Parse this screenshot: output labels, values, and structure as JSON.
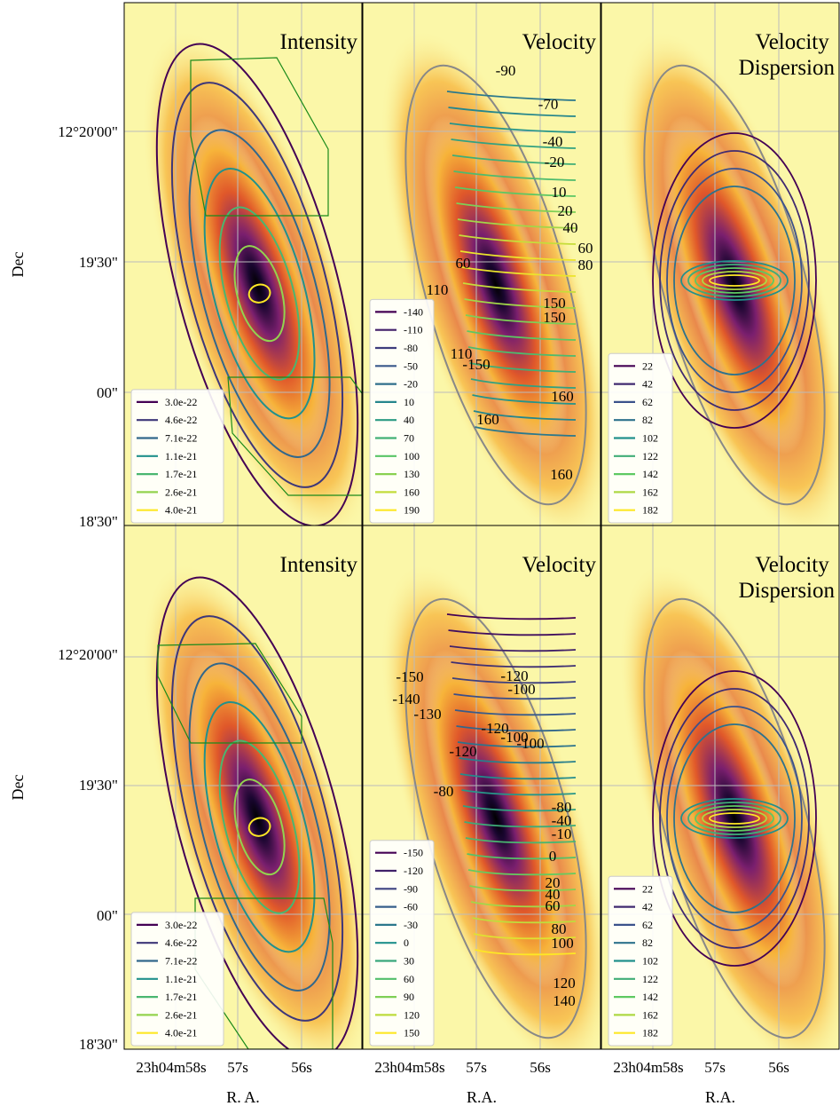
{
  "panels": [
    {
      "title": "Intensity",
      "legend": [
        "3.0e-22",
        "4.6e-22",
        "7.1e-22",
        "1.1e-21",
        "1.7e-21",
        "2.6e-21",
        "4.0e-21"
      ]
    },
    {
      "title": "Velocity",
      "legend": [
        "-140",
        "-110",
        "-80",
        "-50",
        "-20",
        "10",
        "40",
        "70",
        "100",
        "130",
        "160",
        "190"
      ],
      "contour_labels": [
        "-90",
        "-70",
        "-40",
        "-20",
        "10",
        "20",
        "40",
        "60",
        "80",
        "60",
        "110",
        "150",
        "150",
        "110",
        "-150",
        "160",
        "160",
        "160"
      ]
    },
    {
      "title": "Velocity Dispersion",
      "legend": [
        "22",
        "42",
        "62",
        "82",
        "102",
        "122",
        "142",
        "162",
        "182"
      ]
    },
    {
      "title": "Intensity",
      "legend": [
        "3.0e-22",
        "4.6e-22",
        "7.1e-22",
        "1.1e-21",
        "1.7e-21",
        "2.6e-21",
        "4.0e-21"
      ]
    },
    {
      "title": "Velocity",
      "legend": [
        "-150",
        "-120",
        "-90",
        "-60",
        "-30",
        "0",
        "30",
        "60",
        "90",
        "120",
        "150"
      ],
      "contour_labels": [
        "-150",
        "-120",
        "-100",
        "-140",
        "-130",
        "-120",
        "-100",
        "-100",
        "-120",
        "-80",
        "-80",
        "-40",
        "-10",
        "0",
        "20",
        "40",
        "60",
        "80",
        "100",
        "120",
        "140"
      ]
    },
    {
      "title": "Velocity Dispersion",
      "legend": [
        "22",
        "42",
        "62",
        "82",
        "102",
        "122",
        "142",
        "162",
        "182"
      ]
    }
  ],
  "axes": {
    "y_label": "Dec",
    "dec_ticks": [
      "12°20'00\"",
      "19'30\"",
      "00\"",
      "18'30\""
    ],
    "x_labels": [
      "R. A.",
      "R.A.",
      "R.A."
    ],
    "ra_ticks": [
      "23h04m58s",
      "57s",
      "56s"
    ]
  }
}
